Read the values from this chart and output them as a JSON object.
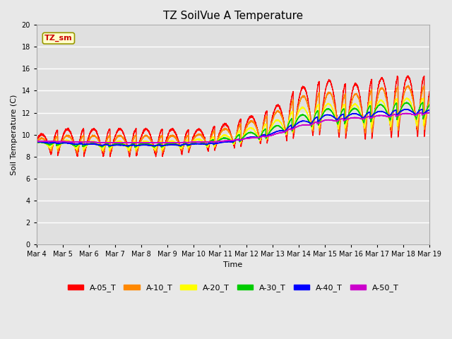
{
  "title": "TZ SoilVue A Temperature",
  "xlabel": "Time",
  "ylabel": "Soil Temperature (C)",
  "ylim": [
    0,
    20
  ],
  "yticks": [
    0,
    2,
    4,
    6,
    8,
    10,
    12,
    14,
    16,
    18,
    20
  ],
  "background_color": "#e8e8e8",
  "plot_bg_color": "#e0e0e0",
  "annotation_text": "TZ_sm",
  "annotation_color": "#cc0000",
  "annotation_bg": "#ffffcc",
  "annotation_border": "#999900",
  "series_colors": {
    "A-05_T": "#ff0000",
    "A-10_T": "#ff8800",
    "A-20_T": "#ffff00",
    "A-30_T": "#00cc00",
    "A-40_T": "#0000ff",
    "A-50_T": "#cc00cc"
  },
  "series_order": [
    "A-05_T",
    "A-10_T",
    "A-20_T",
    "A-30_T",
    "A-40_T",
    "A-50_T"
  ],
  "xticklabels": [
    "Mar 4",
    "Mar 5",
    "Mar 6",
    "Mar 7",
    "Mar 8",
    "Mar 9",
    "Mar 10",
    "Mar 11",
    "Mar 12",
    "Mar 13",
    "Mar 14",
    "Mar 15",
    "Mar 16",
    "Mar 17",
    "Mar 18",
    "Mar 19"
  ],
  "n_days": 15,
  "figsize": [
    6.4,
    4.8
  ],
  "dpi": 100
}
